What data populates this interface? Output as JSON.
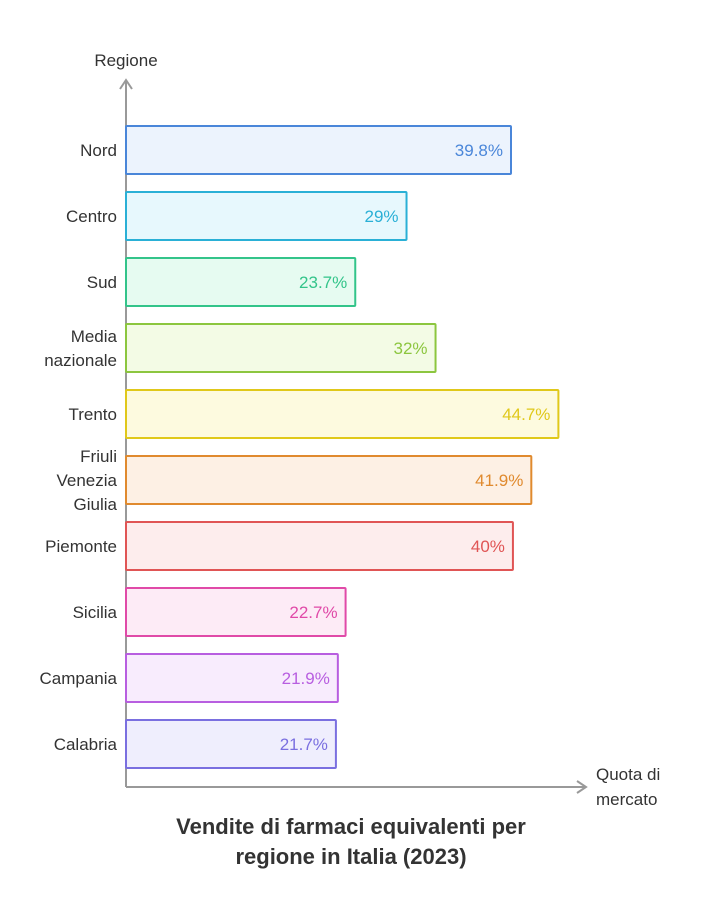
{
  "chart_data": {
    "type": "bar",
    "orientation": "horizontal",
    "title": "Vendite di farmaci equivalenti per regione in Italia (2023)",
    "title_lines": [
      "Vendite di farmaci equivalenti per",
      "regione in Italia (2023)"
    ],
    "xlabel": "Quota di mercato",
    "xlabel_lines": [
      "Quota di",
      "mercato"
    ],
    "ylabel": "Regione",
    "grid": false,
    "categories": [
      "Nord",
      "Centro",
      "Sud",
      "Media nazionale",
      "Trento",
      "Friuli Venezia Giulia",
      "Piemonte",
      "Sicilia",
      "Campania",
      "Calabria"
    ],
    "category_lines": [
      [
        "Nord"
      ],
      [
        "Centro"
      ],
      [
        "Sud"
      ],
      [
        "Media",
        "nazionale"
      ],
      [
        "Trento"
      ],
      [
        "Friuli",
        "Venezia",
        "Giulia"
      ],
      [
        "Piemonte"
      ],
      [
        "Sicilia"
      ],
      [
        "Campania"
      ],
      [
        "Calabria"
      ]
    ],
    "values": [
      39.8,
      29,
      23.7,
      32,
      44.7,
      41.9,
      40,
      22.7,
      21.9,
      21.7
    ],
    "value_labels": [
      "39.8%",
      "29%",
      "23.7%",
      "32%",
      "44.7%",
      "41.9%",
      "40%",
      "22.7%",
      "21.9%",
      "21.7%"
    ],
    "colors": [
      {
        "stroke": "#4a86d9",
        "fill": "#ecf3fd"
      },
      {
        "stroke": "#2ab0d6",
        "fill": "#e7f8fd"
      },
      {
        "stroke": "#33c48a",
        "fill": "#e6fbf1"
      },
      {
        "stroke": "#8cc63f",
        "fill": "#f3fbe5"
      },
      {
        "stroke": "#e0c81a",
        "fill": "#fdfadf"
      },
      {
        "stroke": "#e08a2e",
        "fill": "#fdf0e4"
      },
      {
        "stroke": "#e05555",
        "fill": "#fdeded"
      },
      {
        "stroke": "#e04aa8",
        "fill": "#fdebf6"
      },
      {
        "stroke": "#b85ee0",
        "fill": "#f8ecfd"
      },
      {
        "stroke": "#7a6fe0",
        "fill": "#efeefd"
      }
    ],
    "axis_color": "#999999"
  }
}
